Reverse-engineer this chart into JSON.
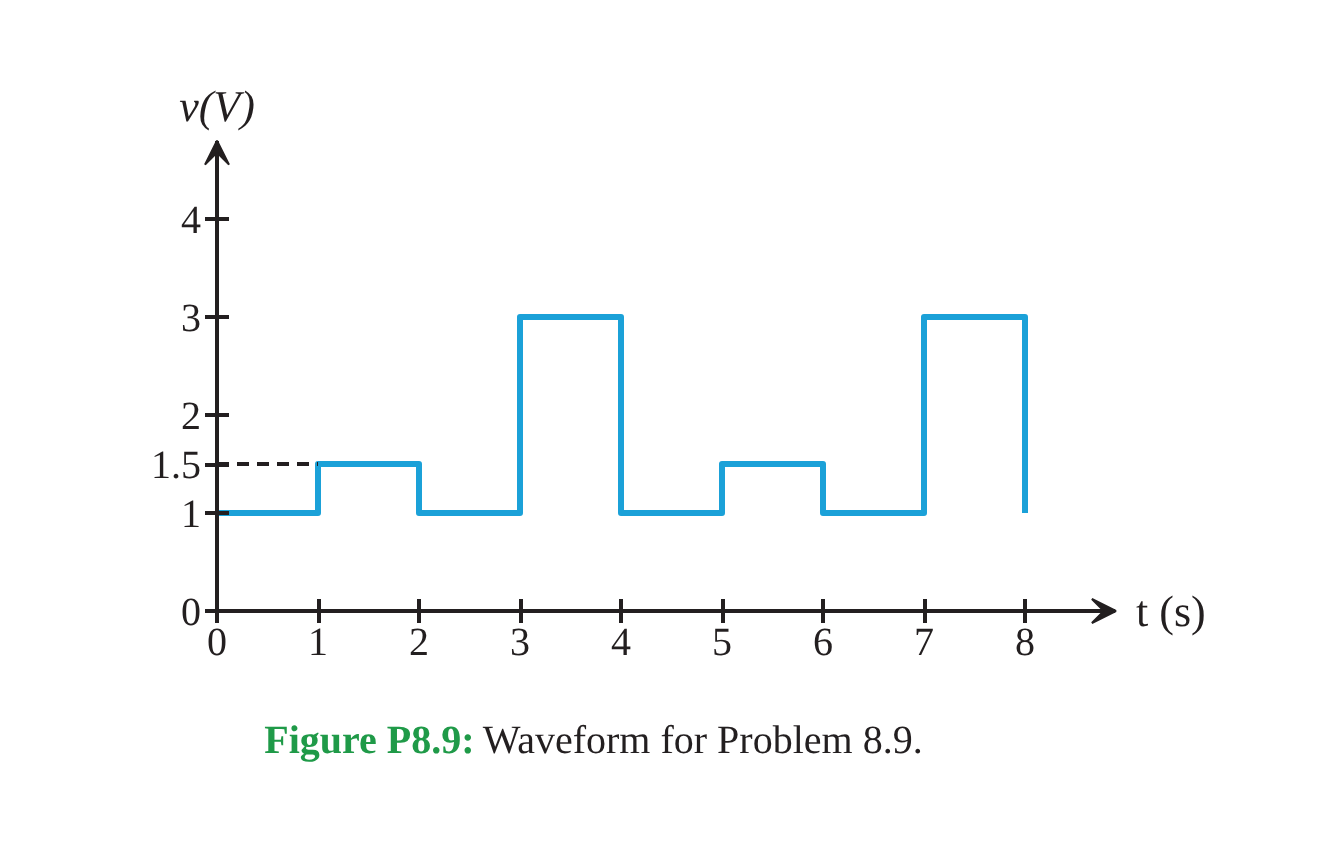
{
  "chart_data": {
    "type": "step",
    "xlabel": "t (s)",
    "ylabel": "v(V)",
    "x": [
      0,
      1,
      2,
      3,
      4,
      5,
      6,
      7,
      8
    ],
    "series": [
      {
        "color": "#1ba1d8",
        "values": [
          1,
          1.5,
          1,
          3,
          1,
          1.5,
          1,
          3,
          1
        ]
      }
    ],
    "xlim": [
      0,
      8.9
    ],
    "ylim": [
      0,
      4.8
    ],
    "xticks": [
      0,
      1,
      2,
      3,
      4,
      5,
      6,
      7,
      8
    ],
    "yticks": [
      0,
      1,
      1.5,
      2,
      3,
      4
    ],
    "ref_lines": [
      {
        "axis": "y",
        "value": 1.5,
        "line_style": "dashed",
        "color": "#231f20"
      }
    ],
    "annotations": [
      "Figure P8.9:",
      "Waveform for Problem 8.9."
    ]
  }
}
